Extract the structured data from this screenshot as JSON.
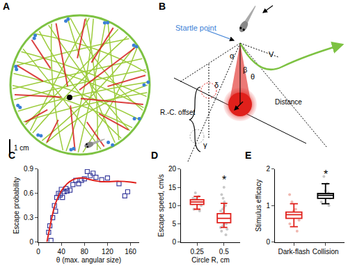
{
  "panels": {
    "A": {
      "label": "A",
      "scale_bar": "1 cm"
    },
    "B": {
      "label": "B",
      "startle": "Startle point",
      "offset": "R.-C. offset",
      "distance": "Distance",
      "alpha": "α",
      "beta": "β",
      "v": "V",
      "theta": "θ",
      "delta": "δ",
      "gamma": "γ"
    }
  },
  "chart_data": [
    {
      "label": "C",
      "type": "scatter",
      "x_label": "θ (max. angular size)",
      "y_label": "Escape probability",
      "xlim": [
        0,
        175
      ],
      "xticks": [
        0,
        40,
        80,
        120,
        160
      ],
      "ylim": [
        0,
        0.9
      ],
      "yticks": [
        0,
        0.3,
        0.6,
        0.9
      ],
      "grid": false,
      "series": [
        {
          "type": "scatter",
          "color": "#3b3f9e",
          "marker": "square-open",
          "x": [
            18,
            20,
            22,
            25,
            28,
            30,
            32,
            35,
            38,
            40,
            42,
            45,
            48,
            50,
            55,
            60,
            65,
            70,
            75,
            80,
            85,
            90,
            95,
            100,
            110,
            120,
            140,
            150,
            155
          ],
          "values": [
            0.12,
            0.2,
            0.02,
            0.3,
            0.45,
            0.38,
            0.55,
            0.6,
            0.58,
            0.65,
            0.55,
            0.62,
            0.66,
            0.63,
            0.64,
            0.71,
            0.76,
            0.72,
            0.76,
            0.78,
            0.87,
            0.82,
            0.85,
            0.8,
            0.77,
            0.79,
            0.72,
            0.57,
            0.62
          ]
        },
        {
          "type": "line",
          "color": "#e0201b",
          "x": [
            15,
            20,
            25,
            30,
            40,
            50,
            60,
            70,
            80,
            90,
            100,
            110,
            120,
            140,
            160,
            170
          ],
          "values": [
            0,
            0.18,
            0.35,
            0.48,
            0.63,
            0.72,
            0.77,
            0.79,
            0.79,
            0.77,
            0.755,
            0.745,
            0.745,
            0.75,
            0.74,
            0.73
          ]
        }
      ]
    },
    {
      "label": "D",
      "type": "box",
      "x_label": "Circle R, cm",
      "y_label": "Escape speed, cm/s",
      "categories": [
        "0.25",
        "0.5"
      ],
      "ylim": [
        0,
        20
      ],
      "yticks": [
        0,
        5,
        10,
        15,
        20
      ],
      "grid": false,
      "boxes": [
        {
          "category": "0.25",
          "lower": 9,
          "q1": 10.3,
          "median": 11,
          "q3": 11.6,
          "upper": 12.5,
          "color": "#e0201b",
          "point_color": "#c8c8c8",
          "points": [
            8.5,
            9,
            10,
            10.5,
            10.8,
            11,
            11.2,
            11.5,
            11.8,
            12,
            12.5,
            13.5
          ]
        },
        {
          "category": "0.5",
          "lower": 4,
          "q1": 5.3,
          "median": 6.5,
          "q3": 7.8,
          "upper": 10.6,
          "color": "#e0201b",
          "point_color": "#c8c8c8",
          "points": [
            2,
            3,
            3.5,
            4,
            4.5,
            5,
            5.2,
            5.5,
            5.8,
            6,
            6.3,
            6.5,
            6.8,
            7,
            7.2,
            7.5,
            8,
            8.5,
            9,
            9.5,
            10,
            11,
            12,
            13,
            15
          ]
        }
      ],
      "annotations": [
        {
          "text": "*",
          "category": "0.5",
          "y": 17
        }
      ]
    },
    {
      "label": "E",
      "type": "box",
      "y_label": "Stimulus efficacy",
      "categories": [
        "Dark-flash",
        "Collision"
      ],
      "ylim": [
        0,
        2
      ],
      "yticks": [
        0,
        1,
        2
      ],
      "grid": false,
      "boxes": [
        {
          "category": "Dark-flash",
          "lower": 0.42,
          "q1": 0.65,
          "median": 0.75,
          "q3": 0.82,
          "upper": 1.05,
          "color": "#e0201b",
          "point_color": "#f0b8b0",
          "points": [
            0.3,
            0.5,
            0.6,
            0.7,
            0.75,
            0.8,
            0.85,
            0.9,
            1.1,
            1.3
          ]
        },
        {
          "category": "Collision",
          "lower": 1.05,
          "q1": 1.2,
          "median": 1.28,
          "q3": 1.33,
          "upper": 1.6,
          "color": "#000000",
          "point_color": "#c8c8c8",
          "points": [
            1.0,
            1.1,
            1.2,
            1.25,
            1.3,
            1.35,
            1.4,
            1.6,
            1.8
          ]
        }
      ],
      "annotations": [
        {
          "text": "*",
          "category": "Collision",
          "y": 1.85
        }
      ]
    }
  ]
}
